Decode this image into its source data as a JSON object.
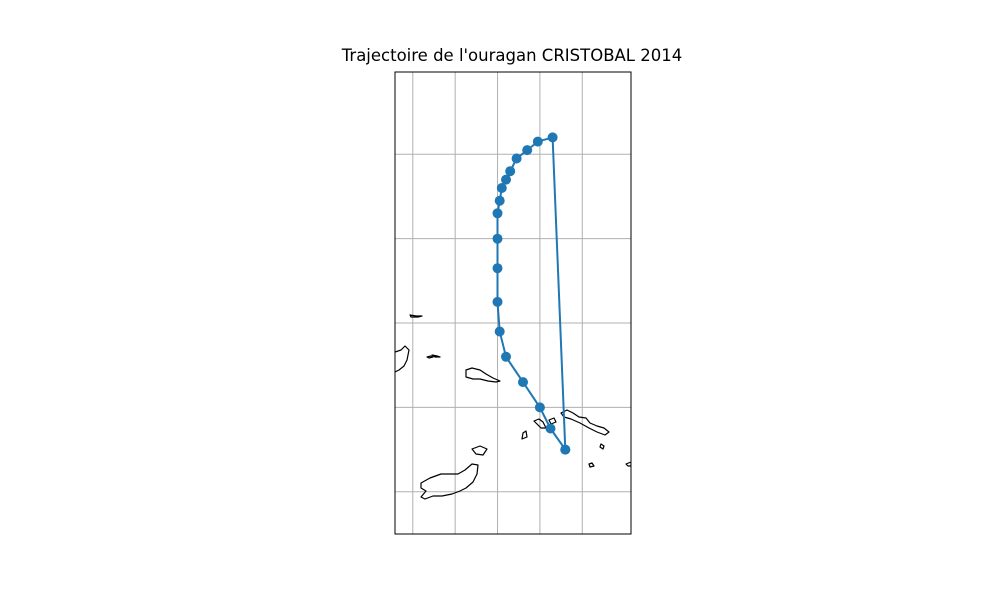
{
  "title": "Trajectoire de l'ouragan CRISTOBAL 2014",
  "colors": {
    "track": "#1f77b4",
    "coastline": "#000000",
    "gridline": "#b0b0b0",
    "frame": "#000000"
  },
  "map": {
    "projection": "PlateCarree",
    "lon_range": [
      -81,
      -77
    ],
    "lat_range": [
      14.5,
      23.4
    ],
    "gridline_lons": [
      -80,
      -79,
      -78,
      -77,
      -76
    ],
    "gridline_lats": [
      15,
      17,
      19,
      21,
      23
    ],
    "gridline_labels_shown": false,
    "coastlines_shown": true
  },
  "chart_data": {
    "type": "scatter",
    "title": "Trajectoire de l'ouragan CRISTOBAL 2014",
    "xlabel": "",
    "ylabel": "",
    "grid": true,
    "series": [
      {
        "marker": "circle",
        "line": true,
        "points": [
          {
            "lon": -76.4,
            "lat": 16.0
          },
          {
            "lon": -76.75,
            "lat": 16.5
          },
          {
            "lon": -77.0,
            "lat": 17.0
          },
          {
            "lon": -77.4,
            "lat": 17.6
          },
          {
            "lon": -77.8,
            "lat": 18.2
          },
          {
            "lon": -77.95,
            "lat": 18.8
          },
          {
            "lon": -78.0,
            "lat": 19.5
          },
          {
            "lon": -78.0,
            "lat": 20.3
          },
          {
            "lon": -78.0,
            "lat": 21.0
          },
          {
            "lon": -78.0,
            "lat": 21.6
          },
          {
            "lon": -77.95,
            "lat": 21.9
          },
          {
            "lon": -77.9,
            "lat": 22.2
          },
          {
            "lon": -77.8,
            "lat": 22.4
          },
          {
            "lon": -77.7,
            "lat": 22.6
          },
          {
            "lon": -77.55,
            "lat": 22.9
          },
          {
            "lon": -77.3,
            "lat": 23.1
          },
          {
            "lon": -77.05,
            "lat": 23.3
          },
          {
            "lon": -76.7,
            "lat": 23.4
          },
          {
            "lon": -76.4,
            "lat": 16.0
          }
        ]
      }
    ]
  }
}
